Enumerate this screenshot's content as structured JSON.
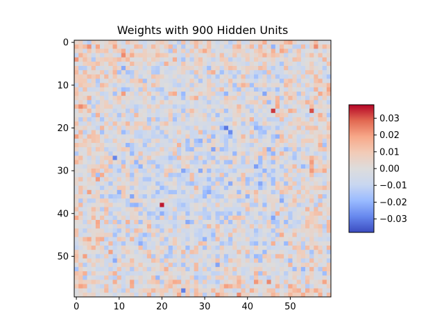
{
  "chart_data": {
    "type": "heatmap",
    "title": "Weights with 900 Hidden Units",
    "xlabel": "",
    "ylabel": "",
    "grid": false,
    "rows": 60,
    "cols": 60,
    "x_range": [
      -0.5,
      59.5
    ],
    "y_range": [
      -0.5,
      59.5
    ],
    "y_inverted": true,
    "x_ticks": [
      0,
      10,
      20,
      30,
      40,
      50
    ],
    "y_ticks": [
      0,
      10,
      20,
      30,
      40,
      50
    ],
    "x_tick_labels": [
      "0",
      "10",
      "20",
      "30",
      "40",
      "50"
    ],
    "y_tick_labels": [
      "0",
      "10",
      "20",
      "30",
      "40",
      "50"
    ],
    "colormap": "coolwarm",
    "colormap_stops": [
      "#3b4cc0",
      "#6788ee",
      "#9abbff",
      "#c9d7f0",
      "#dddcdc",
      "#f2cbb7",
      "#f7a889",
      "#e26952",
      "#b40426"
    ],
    "value_range": [
      -0.038,
      0.038
    ],
    "colorbar": {
      "placement": "right",
      "ticks": [
        0.03,
        0.02,
        0.01,
        0.0,
        -0.01,
        -0.02,
        -0.03
      ],
      "tick_labels": [
        "0.03",
        "0.02",
        "0.01",
        "0.00",
        "−0.01",
        "−0.02",
        "−0.03"
      ]
    },
    "value_model": {
      "note": "weights look like near-random noise; notable extremes read from the image",
      "seed": 900,
      "noise_amplitude": 0.015,
      "extremes": [
        {
          "row": 38,
          "col": 20,
          "value": 0.036
        },
        {
          "row": 20,
          "col": 35,
          "value": -0.031
        },
        {
          "row": 16,
          "col": 46,
          "value": 0.033
        },
        {
          "row": 27,
          "col": 9,
          "value": -0.029
        },
        {
          "row": 16,
          "col": 55,
          "value": 0.031
        },
        {
          "row": 58,
          "col": 25,
          "value": -0.03
        },
        {
          "row": 21,
          "col": 36,
          "value": -0.028
        }
      ]
    }
  }
}
